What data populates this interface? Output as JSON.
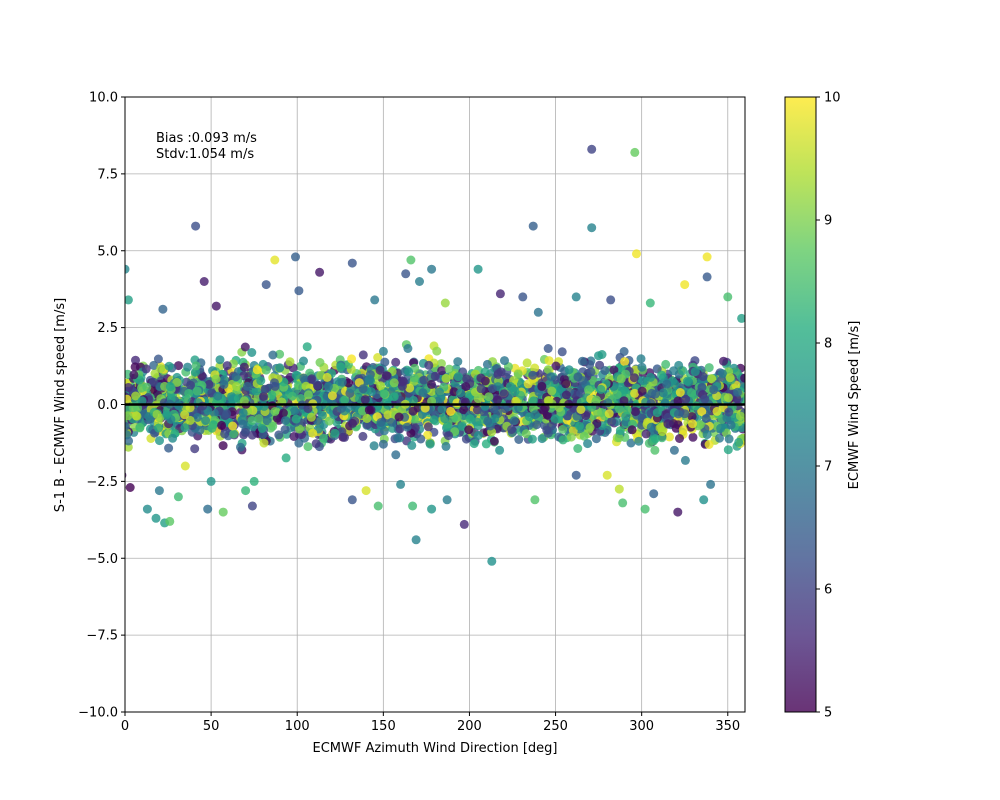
{
  "chart_data": {
    "type": "scatter",
    "xlabel": "ECMWF Azimuth Wind Direction [deg]",
    "ylabel": "S-1 B - ECMWF Wind speed [m/s]",
    "xlim": [
      0,
      360
    ],
    "ylim": [
      -10,
      10
    ],
    "xticks": [
      0,
      50,
      100,
      150,
      200,
      250,
      300,
      350
    ],
    "yticks": [
      -10.0,
      -7.5,
      -5.0,
      -2.5,
      0.0,
      2.5,
      5.0,
      7.5,
      10.0
    ],
    "xtick_labels": [
      "0",
      "50",
      "100",
      "150",
      "200",
      "250",
      "300",
      "350"
    ],
    "ytick_labels": [
      "−10.0",
      "−7.5",
      "−5.0",
      "−2.5",
      "0.0",
      "2.5",
      "5.0",
      "7.5",
      "10.0"
    ],
    "grid": true,
    "reference_line_y": 0,
    "annotation_lines": [
      "Bias :0.093 m/s",
      "Stdv:1.054 m/s"
    ],
    "colormap": "viridis",
    "colorbar": {
      "label": "ECMWF Wind Speed [m/s]",
      "range": [
        5,
        10
      ],
      "ticks": [
        5,
        6,
        7,
        8,
        9,
        10
      ],
      "tick_labels": [
        "5",
        "6",
        "7",
        "8",
        "9",
        "10"
      ]
    },
    "points": [
      [
        271,
        8.3,
        6.0
      ],
      [
        296,
        8.2,
        8.8
      ],
      [
        41,
        5.8,
        6.2
      ],
      [
        237,
        5.8,
        6.5
      ],
      [
        271,
        5.75,
        7.2
      ],
      [
        297,
        4.9,
        9.9
      ],
      [
        338,
        4.8,
        9.9
      ],
      [
        99,
        4.8,
        6.5
      ],
      [
        0,
        4.4,
        7.3
      ],
      [
        166,
        4.7,
        8.6
      ],
      [
        132,
        4.6,
        6.3
      ],
      [
        113,
        4.3,
        5.3
      ],
      [
        163,
        4.25,
        6.3
      ],
      [
        205,
        4.4,
        7.6
      ],
      [
        178,
        4.4,
        7.0
      ],
      [
        87,
        4.7,
        9.8
      ],
      [
        46,
        4.0,
        5.4
      ],
      [
        338,
        4.15,
        6.4
      ],
      [
        82,
        3.9,
        6.3
      ],
      [
        325,
        3.9,
        9.9
      ],
      [
        101,
        3.7,
        6.4
      ],
      [
        171,
        4.0,
        7.1
      ],
      [
        240,
        3.0,
        6.9
      ],
      [
        2,
        3.4,
        7.8
      ],
      [
        22,
        3.1,
        6.6
      ],
      [
        53,
        3.2,
        5.3
      ],
      [
        145,
        3.4,
        7.0
      ],
      [
        218,
        3.6,
        5.5
      ],
      [
        231,
        3.5,
        6.3
      ],
      [
        262,
        3.5,
        7.2
      ],
      [
        282,
        3.4,
        6.2
      ],
      [
        305,
        3.3,
        8.3
      ],
      [
        350,
        3.5,
        8.5
      ],
      [
        358,
        2.8,
        7.8
      ],
      [
        186,
        3.3,
        9.2
      ],
      [
        -1.8,
        -2.3,
        5.2
      ],
      [
        3,
        -2.7,
        5.0
      ],
      [
        20,
        -2.8,
        7.0
      ],
      [
        13,
        -3.4,
        7.4
      ],
      [
        18,
        -3.7,
        7.6
      ],
      [
        23,
        -3.85,
        7.8
      ],
      [
        26,
        -3.8,
        8.7
      ],
      [
        31,
        -3.0,
        8.4
      ],
      [
        48,
        -3.4,
        6.8
      ],
      [
        57,
        -3.5,
        8.8
      ],
      [
        74,
        -3.3,
        6.0
      ],
      [
        70,
        -2.8,
        8.3
      ],
      [
        132,
        -3.1,
        6.3
      ],
      [
        147,
        -3.3,
        8.5
      ],
      [
        167,
        -3.3,
        8.4
      ],
      [
        169,
        -4.4,
        7.2
      ],
      [
        187,
        -3.1,
        7.1
      ],
      [
        178,
        -3.4,
        7.6
      ],
      [
        197,
        -3.9,
        5.6
      ],
      [
        213,
        -5.1,
        7.5
      ],
      [
        238,
        -3.1,
        8.6
      ],
      [
        287,
        -2.75,
        9.5
      ],
      [
        289,
        -3.2,
        8.5
      ],
      [
        302,
        -3.4,
        8.5
      ],
      [
        307,
        -2.9,
        6.6
      ],
      [
        321,
        -3.5,
        5.3
      ],
      [
        336,
        -3.1,
        7.5
      ],
      [
        340,
        -2.6,
        6.9
      ],
      [
        262,
        -2.3,
        6.4
      ],
      [
        280,
        -2.3,
        9.7
      ],
      [
        160,
        -2.6,
        7.2
      ],
      [
        140,
        -2.8,
        9.7
      ],
      [
        75,
        -2.5,
        8.2
      ],
      [
        50,
        -2.5,
        7.6
      ],
      [
        35,
        -2.0,
        9.7
      ]
    ]
  }
}
